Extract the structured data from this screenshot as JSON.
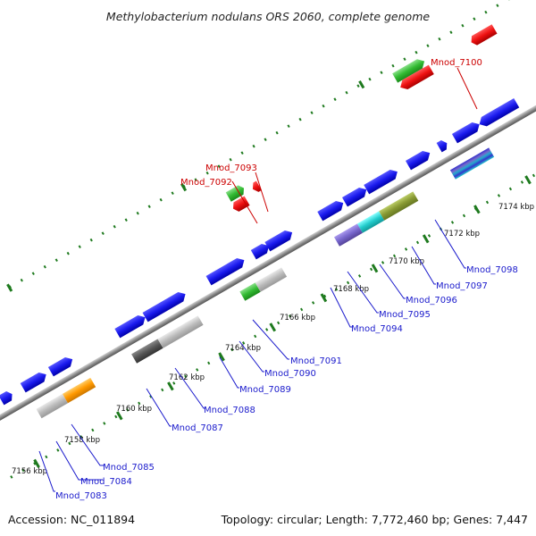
{
  "title": "Methylobacterium nodulans ORS 2060, complete genome",
  "footer": {
    "accession": "Accession: NC_011894",
    "summary": "Topology: circular; Length: 7,772,460 bp; Genes: 7,447"
  },
  "colors": {
    "backbone": "#8c8c8c",
    "tick": "#1e7a1e",
    "label_blue": "#1a1acc",
    "label_red": "#cc0000",
    "gene_blue": "#1a1aee",
    "gene_red": "#ee1111",
    "gene_green": "#33bb33",
    "gene_cyan": "#22cccc",
    "gene_gray": "#bbbbbb",
    "gene_dark": "#555555",
    "gene_orange": "#ff9900",
    "gene_purple": "#7766cc",
    "gene_olive": "#889933",
    "gene_teal": "#33aaaa"
  },
  "scale": {
    "unit": "kbp",
    "ticks": [
      {
        "label": "7156 kbp"
      },
      {
        "label": "7158 kbp"
      },
      {
        "label": "7160 kbp"
      },
      {
        "label": "7162 kbp"
      },
      {
        "label": "7164 kbp"
      },
      {
        "label": "7166 kbp"
      },
      {
        "label": "7168 kbp"
      },
      {
        "label": "7170 kbp"
      },
      {
        "label": "7172 kbp"
      },
      {
        "label": "7174 kbp"
      }
    ]
  },
  "labels": [
    {
      "text": "Mnod_7083",
      "color": "blue"
    },
    {
      "text": "Mnod_7084",
      "color": "blue"
    },
    {
      "text": "Mnod_7085",
      "color": "blue"
    },
    {
      "text": "Mnod_7087",
      "color": "blue"
    },
    {
      "text": "Mnod_7088",
      "color": "blue"
    },
    {
      "text": "Mnod_7089",
      "color": "blue"
    },
    {
      "text": "Mnod_7090",
      "color": "blue"
    },
    {
      "text": "Mnod_7091",
      "color": "blue"
    },
    {
      "text": "Mnod_7094",
      "color": "blue"
    },
    {
      "text": "Mnod_7095",
      "color": "blue"
    },
    {
      "text": "Mnod_7096",
      "color": "blue"
    },
    {
      "text": "Mnod_7097",
      "color": "blue"
    },
    {
      "text": "Mnod_7098",
      "color": "blue"
    },
    {
      "text": "Mnod_7092",
      "color": "red"
    },
    {
      "text": "Mnod_7093",
      "color": "red"
    },
    {
      "text": "Mnod_7100",
      "color": "red"
    }
  ]
}
